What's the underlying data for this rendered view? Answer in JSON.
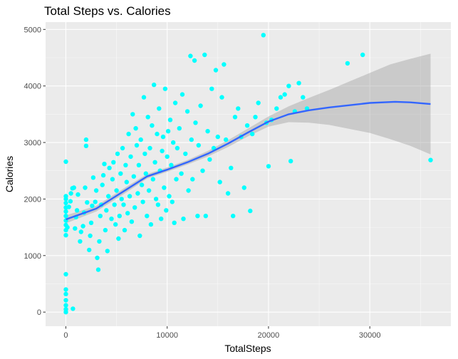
{
  "chart_data": {
    "type": "scatter",
    "title": "Total Steps vs. Calories",
    "xlabel": "TotalSteps",
    "ylabel": "Calories",
    "xlim": [
      -2000,
      38000
    ],
    "ylim": [
      -250,
      5130
    ],
    "x_ticks": [
      0,
      10000,
      20000,
      30000
    ],
    "x_tick_labels": [
      "0",
      "10000",
      "20000",
      "30000"
    ],
    "y_ticks": [
      0,
      1000,
      2000,
      3000,
      4000,
      5000
    ],
    "y_tick_labels": [
      "0",
      "1000",
      "2000",
      "3000",
      "4000",
      "5000"
    ],
    "grid": true,
    "point_color": "#00FFFF",
    "smooth_color": "#3366FF",
    "ribbon_color": "#999999",
    "panel_background": "#EBEBEB",
    "points": [
      [
        0,
        0
      ],
      [
        0,
        50
      ],
      [
        0,
        120
      ],
      [
        0,
        210
      ],
      [
        0,
        320
      ],
      [
        0,
        400
      ],
      [
        0,
        670
      ],
      [
        0,
        1360
      ],
      [
        0,
        1450
      ],
      [
        0,
        1540
      ],
      [
        0,
        1620
      ],
      [
        0,
        1700
      ],
      [
        0,
        1780
      ],
      [
        0,
        1850
      ],
      [
        0,
        1930
      ],
      [
        0,
        2000
      ],
      [
        0,
        2050
      ],
      [
        0,
        2660
      ],
      [
        700,
        60
      ],
      [
        150,
        1500
      ],
      [
        300,
        1860
      ],
      [
        450,
        1960
      ],
      [
        500,
        2100
      ],
      [
        650,
        2190
      ],
      [
        800,
        2200
      ],
      [
        900,
        1480
      ],
      [
        1000,
        1680
      ],
      [
        1100,
        1800
      ],
      [
        1200,
        2080
      ],
      [
        1400,
        1250
      ],
      [
        1500,
        1420
      ],
      [
        1700,
        1520
      ],
      [
        1800,
        1760
      ],
      [
        1900,
        2200
      ],
      [
        2000,
        2940
      ],
      [
        2000,
        3050
      ],
      [
        2100,
        1940
      ],
      [
        2300,
        1100
      ],
      [
        2400,
        1350
      ],
      [
        2500,
        1580
      ],
      [
        2600,
        1880
      ],
      [
        2700,
        2380
      ],
      [
        2900,
        1950
      ],
      [
        3000,
        2150
      ],
      [
        3100,
        960
      ],
      [
        3200,
        750
      ],
      [
        3300,
        1250
      ],
      [
        3400,
        1700
      ],
      [
        3500,
        1900
      ],
      [
        3600,
        2250
      ],
      [
        3700,
        2420
      ],
      [
        3800,
        2620
      ],
      [
        3900,
        1450
      ],
      [
        4000,
        1800
      ],
      [
        4100,
        1080
      ],
      [
        4200,
        2050
      ],
      [
        4300,
        2550
      ],
      [
        4500,
        1650
      ],
      [
        4600,
        2350
      ],
      [
        4700,
        2650
      ],
      [
        4800,
        1900
      ],
      [
        4900,
        1550
      ],
      [
        5000,
        2150
      ],
      [
        5100,
        2800
      ],
      [
        5200,
        1300
      ],
      [
        5300,
        1700
      ],
      [
        5400,
        2450
      ],
      [
        5500,
        2000
      ],
      [
        5600,
        2900
      ],
      [
        5700,
        1900
      ],
      [
        5800,
        1450
      ],
      [
        5900,
        2600
      ],
      [
        6000,
        2300
      ],
      [
        6100,
        1750
      ],
      [
        6200,
        3150
      ],
      [
        6300,
        2050
      ],
      [
        6400,
        2750
      ],
      [
        6500,
        1600
      ],
      [
        6600,
        3500
      ],
      [
        6700,
        2400
      ],
      [
        6800,
        1850
      ],
      [
        6900,
        3250
      ],
      [
        7000,
        2950
      ],
      [
        7100,
        2100
      ],
      [
        7200,
        2600
      ],
      [
        7300,
        1350
      ],
      [
        7400,
        3050
      ],
      [
        7500,
        2250
      ],
      [
        7600,
        1950
      ],
      [
        7700,
        3800
      ],
      [
        7800,
        2800
      ],
      [
        7900,
        2450
      ],
      [
        8000,
        1700
      ],
      [
        8100,
        3450
      ],
      [
        8200,
        2150
      ],
      [
        8300,
        2900
      ],
      [
        8400,
        1550
      ],
      [
        8500,
        3300
      ],
      [
        8600,
        2350
      ],
      [
        8700,
        4020
      ],
      [
        8800,
        2650
      ],
      [
        8900,
        2000
      ],
      [
        9000,
        3150
      ],
      [
        9100,
        1900
      ],
      [
        9200,
        3600
      ],
      [
        9300,
        2500
      ],
      [
        9400,
        1650
      ],
      [
        9500,
        2850
      ],
      [
        9600,
        3100
      ],
      [
        9700,
        2200
      ],
      [
        9800,
        3950
      ],
      [
        9900,
        1800
      ],
      [
        10000,
        2750
      ],
      [
        10100,
        3200
      ],
      [
        10200,
        2050
      ],
      [
        10300,
        3400
      ],
      [
        10400,
        2600
      ],
      [
        10500,
        1950
      ],
      [
        10600,
        3000
      ],
      [
        10700,
        1580
      ],
      [
        10800,
        3700
      ],
      [
        10900,
        2350
      ],
      [
        11000,
        2900
      ],
      [
        11200,
        3250
      ],
      [
        11400,
        2450
      ],
      [
        11500,
        3850
      ],
      [
        11600,
        1650
      ],
      [
        11800,
        2800
      ],
      [
        12000,
        3550
      ],
      [
        12100,
        2150
      ],
      [
        12300,
        4530
      ],
      [
        12400,
        3050
      ],
      [
        12500,
        2350
      ],
      [
        12700,
        4450
      ],
      [
        12800,
        3350
      ],
      [
        13000,
        1700
      ],
      [
        13100,
        2950
      ],
      [
        13300,
        3650
      ],
      [
        13500,
        2500
      ],
      [
        13700,
        4550
      ],
      [
        13800,
        1700
      ],
      [
        14000,
        3200
      ],
      [
        14200,
        2700
      ],
      [
        14400,
        3950
      ],
      [
        14600,
        2900
      ],
      [
        14800,
        4280
      ],
      [
        15000,
        3100
      ],
      [
        15200,
        2300
      ],
      [
        15400,
        3800
      ],
      [
        15600,
        4380
      ],
      [
        15800,
        3050
      ],
      [
        16000,
        2100
      ],
      [
        16300,
        2550
      ],
      [
        16500,
        1700
      ],
      [
        16700,
        3450
      ],
      [
        17000,
        3600
      ],
      [
        17300,
        3100
      ],
      [
        17600,
        2200
      ],
      [
        17900,
        3300
      ],
      [
        18200,
        1790
      ],
      [
        18400,
        3150
      ],
      [
        18700,
        3450
      ],
      [
        19000,
        3700
      ],
      [
        19500,
        4900
      ],
      [
        19800,
        3350
      ],
      [
        20000,
        2580
      ],
      [
        20300,
        3400
      ],
      [
        20800,
        3600
      ],
      [
        21200,
        3800
      ],
      [
        21600,
        3850
      ],
      [
        22000,
        4000
      ],
      [
        22200,
        2670
      ],
      [
        22600,
        3550
      ],
      [
        23000,
        4050
      ],
      [
        23400,
        3800
      ],
      [
        23800,
        3600
      ],
      [
        27800,
        4400
      ],
      [
        29300,
        4550
      ],
      [
        36000,
        2690
      ]
    ],
    "smooth": [
      [
        0,
        1640
      ],
      [
        3000,
        1830
      ],
      [
        6000,
        2170
      ],
      [
        8000,
        2400
      ],
      [
        10000,
        2520
      ],
      [
        12000,
        2650
      ],
      [
        14000,
        2800
      ],
      [
        16000,
        2980
      ],
      [
        18000,
        3180
      ],
      [
        20000,
        3370
      ],
      [
        22000,
        3500
      ],
      [
        24000,
        3570
      ],
      [
        26000,
        3620
      ],
      [
        28000,
        3660
      ],
      [
        30000,
        3700
      ],
      [
        32500,
        3720
      ],
      [
        34000,
        3710
      ],
      [
        36000,
        3680
      ]
    ],
    "ribbon_upper": [
      [
        0,
        1710
      ],
      [
        3000,
        1880
      ],
      [
        6000,
        2220
      ],
      [
        8000,
        2440
      ],
      [
        10000,
        2560
      ],
      [
        12000,
        2690
      ],
      [
        14000,
        2850
      ],
      [
        16000,
        3040
      ],
      [
        18000,
        3250
      ],
      [
        20000,
        3460
      ],
      [
        22000,
        3640
      ],
      [
        24000,
        3790
      ],
      [
        26000,
        3930
      ],
      [
        28000,
        4080
      ],
      [
        30000,
        4230
      ],
      [
        32000,
        4380
      ],
      [
        34000,
        4480
      ],
      [
        36000,
        4570
      ]
    ],
    "ribbon_lower": [
      [
        0,
        1570
      ],
      [
        3000,
        1780
      ],
      [
        6000,
        2120
      ],
      [
        8000,
        2360
      ],
      [
        10000,
        2480
      ],
      [
        12000,
        2610
      ],
      [
        14000,
        2750
      ],
      [
        16000,
        2920
      ],
      [
        18000,
        3110
      ],
      [
        20000,
        3280
      ],
      [
        22000,
        3360
      ],
      [
        24000,
        3350
      ],
      [
        26000,
        3310
      ],
      [
        28000,
        3240
      ],
      [
        30000,
        3170
      ],
      [
        32000,
        3060
      ],
      [
        34000,
        2940
      ],
      [
        36000,
        2790
      ]
    ]
  }
}
